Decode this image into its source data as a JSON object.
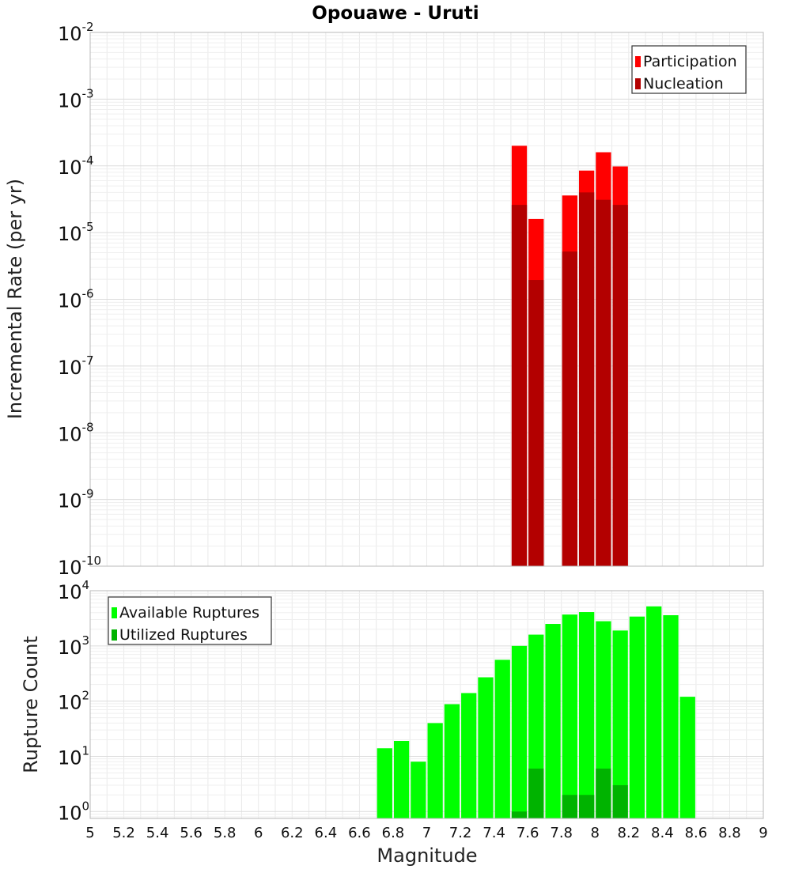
{
  "chart_data": [
    {
      "type": "bar",
      "title": "Opouawe - Uruti",
      "xlabel": "",
      "ylabel": "Incremental Rate (per yr)",
      "yscale": "log",
      "ylim": [
        1e-10,
        0.01
      ],
      "xlim": [
        5,
        9
      ],
      "y_ticks": [
        {
          "base": "10",
          "exp": "-10"
        },
        {
          "base": "10",
          "exp": "-9"
        },
        {
          "base": "10",
          "exp": "-8"
        },
        {
          "base": "10",
          "exp": "-7"
        },
        {
          "base": "10",
          "exp": "-6"
        },
        {
          "base": "10",
          "exp": "-5"
        },
        {
          "base": "10",
          "exp": "-4"
        },
        {
          "base": "10",
          "exp": "-3"
        },
        {
          "base": "10",
          "exp": "-2"
        }
      ],
      "grid": true,
      "legend_position": "top-right",
      "legend": [
        "Participation",
        "Nucleation"
      ],
      "series": [
        {
          "name": "Participation",
          "color": "#ff0000",
          "x": [
            7.55,
            7.65,
            7.85,
            7.95,
            8.05,
            8.15
          ],
          "values": [
            0.0002,
            1.6e-05,
            3.6e-05,
            8.5e-05,
            0.00016,
            9.8e-05
          ]
        },
        {
          "name": "Nucleation",
          "color": "#b30000",
          "x": [
            7.55,
            7.65,
            7.85,
            7.95,
            8.05,
            8.15
          ],
          "values": [
            2.6e-05,
            1.95e-06,
            5.2e-06,
            4e-05,
            3.1e-05,
            2.6e-05
          ]
        }
      ]
    },
    {
      "type": "bar",
      "title": "",
      "xlabel": "Magnitude",
      "ylabel": "Rupture Count",
      "yscale": "log",
      "ylim": [
        0.75,
        10000
      ],
      "xlim": [
        5,
        9
      ],
      "x_ticks": [
        "5",
        "5.2",
        "5.4",
        "5.6",
        "5.8",
        "6",
        "6.2",
        "6.4",
        "6.6",
        "6.8",
        "7",
        "7.2",
        "7.4",
        "7.6",
        "7.8",
        "8",
        "8.2",
        "8.4",
        "8.6",
        "8.8",
        "9"
      ],
      "y_ticks": [
        {
          "base": "10",
          "exp": "0"
        },
        {
          "base": "10",
          "exp": "1"
        },
        {
          "base": "10",
          "exp": "2"
        },
        {
          "base": "10",
          "exp": "3"
        },
        {
          "base": "10",
          "exp": "4"
        }
      ],
      "grid": true,
      "legend_position": "top-left",
      "legend": [
        "Available Ruptures",
        "Utilized Ruptures"
      ],
      "series": [
        {
          "name": "Available Ruptures",
          "color": "#00ff00",
          "x": [
            6.75,
            6.85,
            6.95,
            7.05,
            7.15,
            7.25,
            7.35,
            7.45,
            7.55,
            7.65,
            7.75,
            7.85,
            7.95,
            8.05,
            8.15,
            8.25,
            8.35,
            8.45,
            8.55
          ],
          "values": [
            14,
            19,
            8,
            40,
            88,
            140,
            270,
            560,
            1000,
            1600,
            2500,
            3700,
            4100,
            2800,
            1900,
            3400,
            5200,
            3600,
            120
          ]
        },
        {
          "name": "Utilized Ruptures",
          "color": "#00b300",
          "x": [
            7.55,
            7.65,
            7.85,
            7.95,
            8.05,
            8.15
          ],
          "values": [
            1,
            6,
            2,
            2,
            6,
            3
          ]
        }
      ]
    }
  ]
}
